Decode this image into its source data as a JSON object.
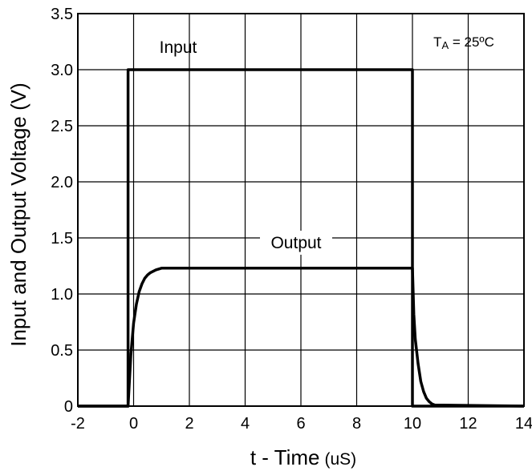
{
  "chart_data": {
    "type": "line",
    "xlabel": "t - Time",
    "xlabel_unit": "(uS)",
    "ylabel": "Input and Output Voltage (V)",
    "xlim": [
      -2,
      14
    ],
    "ylim": [
      0,
      3.5
    ],
    "x_ticks": [
      -2,
      0,
      2,
      4,
      6,
      8,
      10,
      12,
      14
    ],
    "x_tick_labels": [
      "-2",
      "0",
      "2",
      "4",
      "6",
      "8",
      "10",
      "12",
      "14"
    ],
    "y_ticks": [
      0,
      0.5,
      1.0,
      1.5,
      2.0,
      2.5,
      3.0,
      3.5
    ],
    "y_tick_labels": [
      "0",
      "0.5",
      "1.0",
      "1.5",
      "2.0",
      "2.5",
      "3.0",
      "3.5"
    ],
    "grid": true,
    "series": [
      {
        "name": "Input",
        "x": [
          -2,
          -0.2,
          -0.2,
          10,
          10,
          14
        ],
        "y": [
          0,
          0,
          3.0,
          3.0,
          0,
          0
        ]
      },
      {
        "name": "Output",
        "x": [
          -2,
          -0.2,
          -0.1,
          0,
          0.1,
          0.2,
          0.3,
          0.4,
          0.5,
          0.6,
          0.8,
          1.0,
          10.0,
          10.05,
          10.1,
          10.2,
          10.3,
          10.4,
          10.5,
          10.6,
          10.7,
          10.8,
          14
        ],
        "y": [
          0,
          0,
          0.45,
          0.74,
          0.91,
          1.02,
          1.09,
          1.14,
          1.17,
          1.19,
          1.215,
          1.23,
          1.23,
          0.82,
          0.6,
          0.38,
          0.22,
          0.13,
          0.07,
          0.04,
          0.02,
          0.01,
          0
        ]
      }
    ],
    "annotations": {
      "input_label": "Input",
      "output_label": "Output",
      "temp_prefix": "T",
      "temp_sub": "A",
      "temp_suffix": " = 25ºC"
    }
  }
}
